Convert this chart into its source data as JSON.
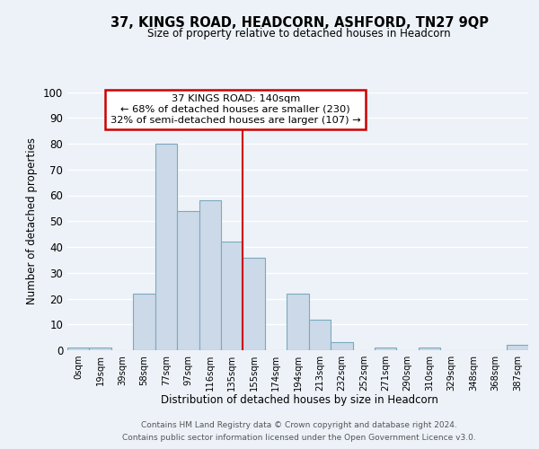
{
  "title": "37, KINGS ROAD, HEADCORN, ASHFORD, TN27 9QP",
  "subtitle": "Size of property relative to detached houses in Headcorn",
  "xlabel": "Distribution of detached houses by size in Headcorn",
  "ylabel": "Number of detached properties",
  "bin_labels": [
    "0sqm",
    "19sqm",
    "39sqm",
    "58sqm",
    "77sqm",
    "97sqm",
    "116sqm",
    "135sqm",
    "155sqm",
    "174sqm",
    "194sqm",
    "213sqm",
    "232sqm",
    "252sqm",
    "271sqm",
    "290sqm",
    "310sqm",
    "329sqm",
    "348sqm",
    "368sqm",
    "387sqm"
  ],
  "bar_heights": [
    1,
    1,
    0,
    22,
    80,
    54,
    58,
    42,
    36,
    0,
    22,
    12,
    3,
    0,
    1,
    0,
    1,
    0,
    0,
    0,
    2
  ],
  "bar_color": "#ccd9e8",
  "bar_edge_color": "#7aaabf",
  "vline_x": 7.5,
  "property_line_label": "37 KINGS ROAD: 140sqm",
  "annotation_line1": "← 68% of detached houses are smaller (230)",
  "annotation_line2": "32% of semi-detached houses are larger (107) →",
  "annotation_box_color": "#ffffff",
  "annotation_box_edge": "#cc0000",
  "vline_color": "#cc0000",
  "ylim": [
    0,
    100
  ],
  "yticks": [
    0,
    10,
    20,
    30,
    40,
    50,
    60,
    70,
    80,
    90,
    100
  ],
  "footer_line1": "Contains HM Land Registry data © Crown copyright and database right 2024.",
  "footer_line2": "Contains public sector information licensed under the Open Government Licence v3.0.",
  "background_color": "#edf2f8",
  "grid_color": "#ffffff"
}
